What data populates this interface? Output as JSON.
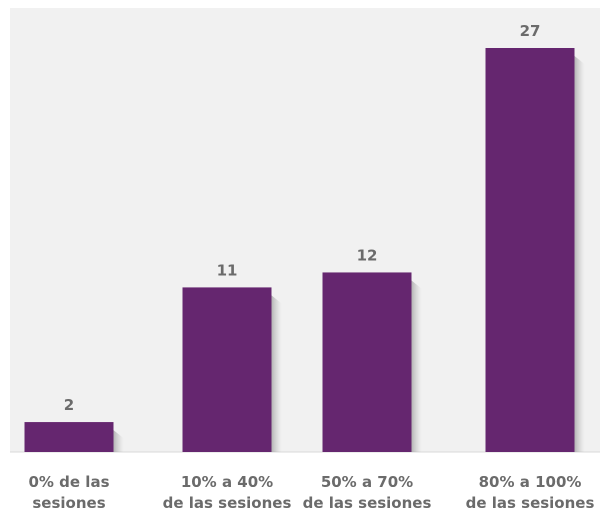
{
  "chart_data": {
    "type": "bar",
    "categories": [
      [
        "0% de las",
        "sesiones"
      ],
      [
        "10% a 40%",
        "de las sesiones"
      ],
      [
        "50% a 70%",
        "de las sesiones"
      ],
      [
        "80% a 100%",
        "de las sesiones"
      ]
    ],
    "values": [
      2,
      11,
      12,
      27
    ],
    "value_labels": [
      "2",
      "11",
      "12",
      "27"
    ],
    "title": "",
    "xlabel": "",
    "ylabel": "",
    "ylim": [
      0,
      27
    ],
    "grid": false,
    "legend": "none",
    "colors": {
      "bar": "#65266f",
      "plot_background": "#f1f1f1",
      "label_text": "#6b6b6b"
    }
  }
}
